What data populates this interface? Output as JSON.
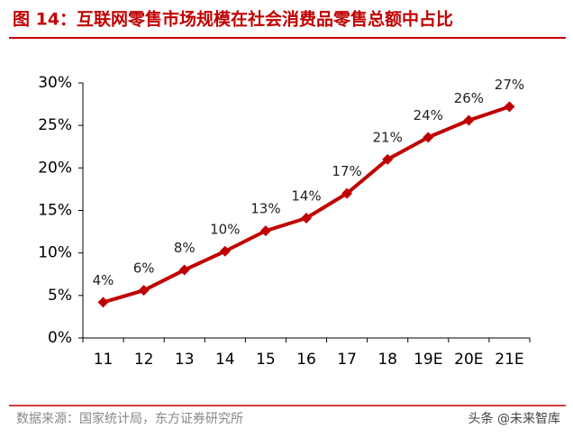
{
  "chart_data": {
    "type": "line",
    "title": "图 14：互联网零售市场规模在社会消费品零售总额中占比",
    "categories": [
      "11",
      "12",
      "13",
      "14",
      "15",
      "16",
      "17",
      "18",
      "19E",
      "20E",
      "21E"
    ],
    "values": [
      4.2,
      5.6,
      8.0,
      10.2,
      12.6,
      14.1,
      17.0,
      21.0,
      23.6,
      25.6,
      27.2
    ],
    "value_labels": [
      "4%",
      "6%",
      "8%",
      "10%",
      "13%",
      "14%",
      "17%",
      "21%",
      "24%",
      "26%",
      "27%"
    ],
    "color": "#c00000",
    "ylim": [
      0,
      30
    ],
    "yticks": [
      {
        "value": 0,
        "label": "0%"
      },
      {
        "value": 5,
        "label": "5%"
      },
      {
        "value": 10,
        "label": "10%"
      },
      {
        "value": 15,
        "label": "15%"
      },
      {
        "value": 20,
        "label": "20%"
      },
      {
        "value": 25,
        "label": "25%"
      },
      {
        "value": 30,
        "label": "30%"
      }
    ],
    "grid": false,
    "source": "数据来源：国家统计局，东方证券研究所",
    "watermark": "头条 @未来智库"
  }
}
